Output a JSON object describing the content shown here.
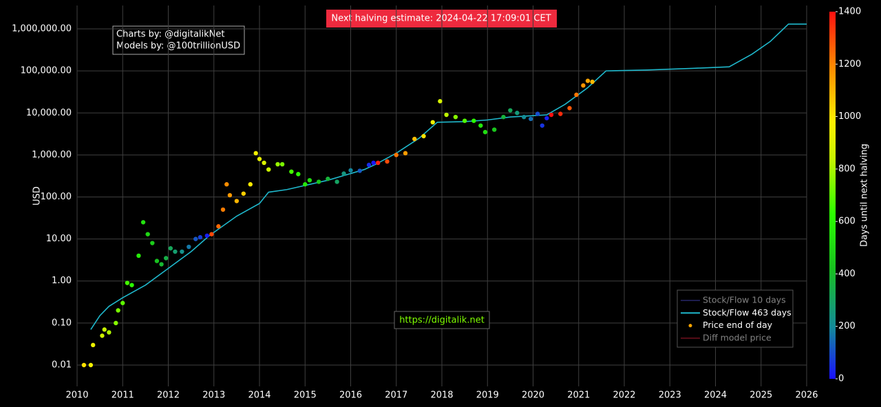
{
  "chart_data": {
    "type": "scatter",
    "halving_note": "Next halving estimate: 2024-04-22 17:09:01 CET",
    "credits": [
      "Charts by: @digitalikNet",
      "Models by: @100trillionUSD"
    ],
    "watermark": "https://digitalik.net",
    "y_label": "USD",
    "log_y": true,
    "grid": true,
    "legend_position": "bottom-right",
    "xlim": [
      2010,
      2026
    ],
    "xticks": [
      2010,
      2011,
      2012,
      2013,
      2014,
      2015,
      2016,
      2017,
      2018,
      2019,
      2020,
      2021,
      2022,
      2023,
      2024,
      2025,
      2026
    ],
    "ylim": [
      0.00311,
      3600000
    ],
    "yticks": [
      0.01,
      {
        "value": 0.1,
        "label": "0.10"
      },
      {
        "value": 1,
        "label": "1.00"
      },
      {
        "value": 10,
        "label": "10.00"
      },
      {
        "value": 100,
        "label": "100.00"
      },
      {
        "value": 1000,
        "label": "1,000.00"
      },
      {
        "value": 10000,
        "label": "10,000.00"
      },
      {
        "value": 100000,
        "label": "100,000.00"
      },
      {
        "value": 1000000,
        "label": "1,000,000.00"
      }
    ],
    "colorbar": {
      "title": "Days until next halving",
      "lim": [
        0,
        1400
      ],
      "ticks": [
        0,
        200,
        400,
        600,
        800,
        1000,
        1200,
        1400
      ],
      "colorscale": [
        [
          0,
          "#1a10ff"
        ],
        [
          0.14,
          "#138a9a"
        ],
        [
          0.3,
          "#18c020"
        ],
        [
          0.45,
          "#2cff00"
        ],
        [
          0.6,
          "#c8f500"
        ],
        [
          0.7,
          "#fff000"
        ],
        [
          0.85,
          "#ff8a00"
        ],
        [
          1,
          "#ff1010"
        ]
      ]
    },
    "series": [
      {
        "name": "Stock/Flow 10 days",
        "color": "#3a3a9e",
        "visible": false
      },
      {
        "name": "Stock/Flow 463 days",
        "color": "#1fb8cc",
        "visible": true,
        "mode": "line",
        "x": [
          2010.3,
          2010.5,
          2010.7,
          2011.0,
          2011.5,
          2012.0,
          2012.5,
          2012.9,
          2013.5,
          2014.0,
          2014.2,
          2014.6,
          2015.5,
          2016.3,
          2016.55,
          2017.0,
          2017.5,
          2017.9,
          2018.5,
          2019.0,
          2019.5,
          2020.3,
          2020.7,
          2021.2,
          2021.6,
          2022.5,
          2023.5,
          2024.3,
          2024.8,
          2025.2,
          2025.6,
          2026.0
        ],
        "values": [
          0.07,
          0.15,
          0.25,
          0.4,
          0.8,
          2,
          5,
          12,
          35,
          70,
          130,
          150,
          250,
          450,
          600,
          1100,
          2500,
          6000,
          6200,
          6800,
          8000,
          9000,
          16000,
          40000,
          100000,
          105000,
          115000,
          125000,
          250000,
          500000,
          1300000,
          1300000
        ]
      },
      {
        "name": "Price end of day",
        "color": "#ffa500",
        "visible": true,
        "mode": "markers",
        "x": [
          2010.15,
          2010.3,
          2010.35,
          2010.55,
          2010.6,
          2010.7,
          2010.85,
          2010.9,
          2011.0,
          2011.1,
          2011.2,
          2011.35,
          2011.45,
          2011.55,
          2011.65,
          2011.75,
          2011.85,
          2011.95,
          2012.05,
          2012.15,
          2012.3,
          2012.45,
          2012.6,
          2012.7,
          2012.85,
          2012.95,
          2013.1,
          2013.2,
          2013.28,
          2013.35,
          2013.5,
          2013.65,
          2013.8,
          2013.92,
          2014.0,
          2014.1,
          2014.2,
          2014.4,
          2014.5,
          2014.7,
          2014.85,
          2015.0,
          2015.1,
          2015.3,
          2015.5,
          2015.7,
          2015.85,
          2016.0,
          2016.2,
          2016.4,
          2016.5,
          2016.6,
          2016.8,
          2017.0,
          2017.2,
          2017.4,
          2017.6,
          2017.8,
          2017.96,
          2018.1,
          2018.3,
          2018.5,
          2018.7,
          2018.85,
          2018.95,
          2019.15,
          2019.35,
          2019.5,
          2019.65,
          2019.8,
          2019.95,
          2020.1,
          2020.2,
          2020.3,
          2020.4,
          2020.6,
          2020.8,
          2020.95,
          2021.1,
          2021.2,
          2021.3
        ],
        "values": [
          0.01,
          0.01,
          0.03,
          0.05,
          0.07,
          0.06,
          0.1,
          0.2,
          0.3,
          0.9,
          0.8,
          4,
          25,
          13,
          8,
          3,
          2.5,
          3.5,
          6,
          5,
          5,
          6.5,
          10,
          11,
          12,
          13,
          20,
          50,
          200,
          110,
          80,
          120,
          200,
          1100,
          800,
          650,
          450,
          600,
          600,
          400,
          350,
          200,
          250,
          230,
          270,
          230,
          360,
          430,
          420,
          580,
          650,
          650,
          700,
          1000,
          1100,
          2400,
          2800,
          6000,
          19000,
          9000,
          8000,
          6500,
          6500,
          5000,
          3500,
          4000,
          8000,
          11500,
          10000,
          8000,
          7200,
          9500,
          5000,
          7500,
          9000,
          9500,
          13000,
          27000,
          45000,
          58000,
          55000
        ],
        "color_values": [
          1007,
          953,
          934,
          861,
          843,
          807,
          752,
          734,
          697,
          661,
          624,
          569,
          533,
          496,
          460,
          423,
          387,
          350,
          314,
          277,
          223,
          168,
          113,
          77,
          22,
          1303,
          1248,
          1212,
          1183,
          1157,
          1102,
          1048,
          993,
          949,
          920,
          883,
          847,
          774,
          737,
          664,
          610,
          555,
          518,
          445,
          372,
          299,
          245,
          190,
          117,
          44,
          7,
          1372,
          1299,
          1226,
          1153,
          1080,
          1007,
          934,
          876,
          825,
          752,
          679,
          606,
          551,
          515,
          442,
          369,
          314,
          259,
          204,
          150,
          95,
          58,
          22,
          1400,
          1351,
          1278,
          1223,
          1168,
          1132,
          1095
        ]
      },
      {
        "name": "Diff model price",
        "color": "#b0182e",
        "visible": false
      }
    ]
  }
}
